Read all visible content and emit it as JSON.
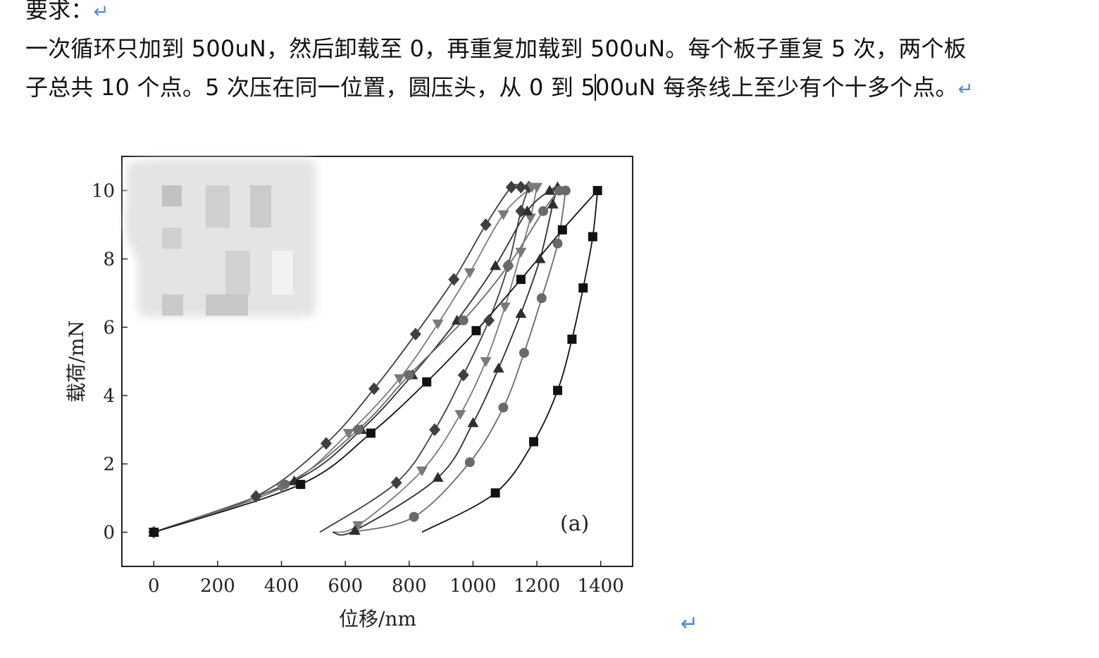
{
  "doc": {
    "heading": "要求：",
    "line2": "一次循环只加到 500uN，然后卸载至 0，再重复加载到 500uN。每个板子重复 5 次，两个板",
    "line3_before_cursor": "子总共 10 个点。5 次压在同一位置，圆压头，从 0 到 5",
    "line3_after_cursor": "00uN 每条线上至少有个十多个点。",
    "para_mark": "↵"
  },
  "chart_data": {
    "type": "line",
    "xlabel": "位移/nm",
    "ylabel": "载荷/mN",
    "xlim": [
      -100,
      1500
    ],
    "ylim": [
      -1,
      11
    ],
    "xticks": [
      0,
      200,
      400,
      600,
      800,
      1000,
      1200,
      1400
    ],
    "yticks": [
      0,
      2,
      4,
      6,
      8,
      10
    ],
    "annotation": "(a)",
    "grid": false,
    "legend": "blurred (top-left)",
    "series": [
      {
        "marker": "diamond",
        "color": "#3f3f3f",
        "loading": [
          [
            0,
            0
          ],
          [
            320,
            1.05
          ],
          [
            540,
            2.6
          ],
          [
            690,
            4.2
          ],
          [
            820,
            5.8
          ],
          [
            940,
            7.4
          ],
          [
            1040,
            9.0
          ],
          [
            1120,
            10.1
          ],
          [
            1150,
            10.1
          ],
          [
            1175,
            10.1
          ]
        ],
        "unloading": [
          [
            1175,
            10.1
          ],
          [
            1150,
            9.4
          ],
          [
            1110,
            7.8
          ],
          [
            1050,
            6.2
          ],
          [
            970,
            4.6
          ],
          [
            880,
            3.0
          ],
          [
            760,
            1.45
          ],
          [
            520,
            0
          ]
        ]
      },
      {
        "marker": "triangle-down",
        "color": "#7a7a7a",
        "loading": [
          [
            0,
            0
          ],
          [
            400,
            1.3
          ],
          [
            610,
            2.9
          ],
          [
            770,
            4.5
          ],
          [
            890,
            6.1
          ],
          [
            990,
            7.6
          ],
          [
            1095,
            9.3
          ],
          [
            1185,
            10.1
          ],
          [
            1200,
            10.1
          ]
        ],
        "unloading": [
          [
            1200,
            10.1
          ],
          [
            1180,
            9.2
          ],
          [
            1150,
            8.2
          ],
          [
            1100,
            6.6
          ],
          [
            1040,
            5.0
          ],
          [
            960,
            3.45
          ],
          [
            840,
            1.8
          ],
          [
            640,
            0.2
          ],
          [
            560,
            0
          ]
        ]
      },
      {
        "marker": "triangle-up",
        "color": "#2e2e2e",
        "loading": [
          [
            0,
            0
          ],
          [
            440,
            1.5
          ],
          [
            650,
            3.0
          ],
          [
            810,
            4.6
          ],
          [
            950,
            6.2
          ],
          [
            1070,
            7.8
          ],
          [
            1170,
            9.4
          ],
          [
            1240,
            10.0
          ],
          [
            1265,
            10.1
          ]
        ],
        "unloading": [
          [
            1265,
            10.1
          ],
          [
            1250,
            9.6
          ],
          [
            1210,
            8.0
          ],
          [
            1150,
            6.4
          ],
          [
            1080,
            4.8
          ],
          [
            1000,
            3.2
          ],
          [
            890,
            1.6
          ],
          [
            630,
            0.05
          ],
          [
            560,
            0
          ]
        ]
      },
      {
        "marker": "circle",
        "color": "#6a6a6a",
        "loading": [
          [
            0,
            0
          ],
          [
            410,
            1.4
          ],
          [
            640,
            3.0
          ],
          [
            800,
            4.6
          ],
          [
            970,
            6.2
          ],
          [
            1110,
            7.8
          ],
          [
            1220,
            9.4
          ],
          [
            1270,
            10.0
          ],
          [
            1290,
            10.0
          ]
        ],
        "unloading": [
          [
            1290,
            10.0
          ],
          [
            1265,
            8.45
          ],
          [
            1215,
            6.85
          ],
          [
            1160,
            5.25
          ],
          [
            1095,
            3.65
          ],
          [
            990,
            2.05
          ],
          [
            815,
            0.45
          ],
          [
            620,
            0
          ]
        ]
      },
      {
        "marker": "square",
        "color": "#111111",
        "loading": [
          [
            0,
            0
          ],
          [
            460,
            1.4
          ],
          [
            680,
            2.9
          ],
          [
            855,
            4.4
          ],
          [
            1010,
            5.9
          ],
          [
            1150,
            7.4
          ],
          [
            1280,
            8.85
          ],
          [
            1390,
            10.0
          ]
        ],
        "unloading": [
          [
            1390,
            10.0
          ],
          [
            1375,
            8.65
          ],
          [
            1345,
            7.15
          ],
          [
            1310,
            5.65
          ],
          [
            1265,
            4.15
          ],
          [
            1190,
            2.65
          ],
          [
            1070,
            1.15
          ],
          [
            840,
            0
          ]
        ]
      }
    ]
  }
}
